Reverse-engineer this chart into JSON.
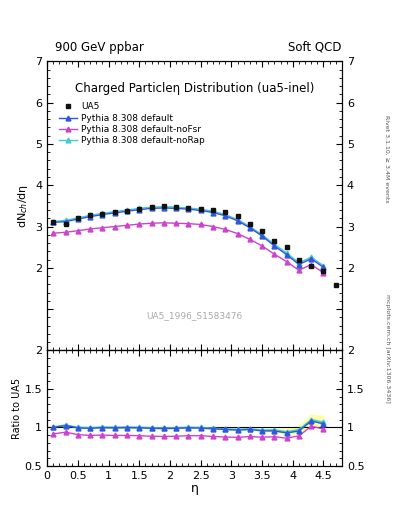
{
  "title": "Charged Particleη Distribution",
  "title_suffix": "(ua5-inel)",
  "header_left": "900 GeV ppbar",
  "header_right": "Soft QCD",
  "ylabel_main": "dN$_{ch}$/dη",
  "ylabel_ratio": "Ratio to UA5",
  "xlabel": "η",
  "right_label_top": "Rivet 3.1.10, ≥ 3.4M events",
  "right_label_bottom": "mcplots.cern.ch [arXiv:1306.3436]",
  "watermark": "UA5_1996_S1583476",
  "ua5_eta": [
    0.1,
    0.3,
    0.5,
    0.7,
    0.9,
    1.1,
    1.3,
    1.5,
    1.7,
    1.9,
    2.1,
    2.3,
    2.5,
    2.7,
    2.9,
    3.1,
    3.3,
    3.5,
    3.7,
    3.9,
    4.1,
    4.3,
    4.5,
    4.7
  ],
  "ua5_vals": [
    3.1,
    3.05,
    3.2,
    3.28,
    3.3,
    3.35,
    3.38,
    3.43,
    3.48,
    3.5,
    3.48,
    3.44,
    3.42,
    3.4,
    3.35,
    3.25,
    3.05,
    2.9,
    2.65,
    2.5,
    2.18,
    2.05,
    1.92,
    1.58
  ],
  "py_default_eta": [
    0.1,
    0.3,
    0.5,
    0.7,
    0.9,
    1.1,
    1.3,
    1.5,
    1.7,
    1.9,
    2.1,
    2.3,
    2.5,
    2.7,
    2.9,
    3.1,
    3.3,
    3.5,
    3.7,
    3.9,
    4.1,
    4.3,
    4.5
  ],
  "py_default_vals": [
    3.1,
    3.12,
    3.18,
    3.24,
    3.29,
    3.33,
    3.37,
    3.41,
    3.44,
    3.45,
    3.44,
    3.42,
    3.39,
    3.34,
    3.26,
    3.14,
    2.97,
    2.77,
    2.53,
    2.32,
    2.08,
    2.22,
    2.01
  ],
  "py_nofsr_eta": [
    0.1,
    0.3,
    0.5,
    0.7,
    0.9,
    1.1,
    1.3,
    1.5,
    1.7,
    1.9,
    2.1,
    2.3,
    2.5,
    2.7,
    2.9,
    3.1,
    3.3,
    3.5,
    3.7,
    3.9,
    4.1,
    4.3,
    4.5
  ],
  "py_nofsr_vals": [
    2.84,
    2.86,
    2.9,
    2.94,
    2.97,
    3.0,
    3.03,
    3.06,
    3.08,
    3.09,
    3.08,
    3.07,
    3.05,
    3.0,
    2.93,
    2.83,
    2.69,
    2.53,
    2.33,
    2.15,
    1.94,
    2.08,
    1.88
  ],
  "py_norap_eta": [
    0.1,
    0.3,
    0.5,
    0.7,
    0.9,
    1.1,
    1.3,
    1.5,
    1.7,
    1.9,
    2.1,
    2.3,
    2.5,
    2.7,
    2.9,
    3.1,
    3.3,
    3.5,
    3.7,
    3.9,
    4.1,
    4.3,
    4.5
  ],
  "py_norap_vals": [
    3.12,
    3.15,
    3.21,
    3.27,
    3.32,
    3.36,
    3.4,
    3.44,
    3.47,
    3.48,
    3.47,
    3.45,
    3.42,
    3.37,
    3.29,
    3.17,
    3.0,
    2.8,
    2.57,
    2.36,
    2.12,
    2.26,
    2.05
  ],
  "color_ua5": "#111111",
  "color_default": "#3355dd",
  "color_nofsr": "#cc44cc",
  "color_norap": "#44cccc",
  "band_yellow": "#ffff88",
  "band_green": "#88ff88",
  "band_alpha": 0.7,
  "ylim_main": [
    0.0,
    7.0
  ],
  "ylim_ratio": [
    0.5,
    2.0
  ],
  "xlim": [
    0.0,
    4.8
  ],
  "yticks_main": [
    1,
    2,
    3,
    4,
    5,
    6,
    7
  ],
  "yticks_ratio": [
    0.5,
    1.0,
    1.5,
    2.0
  ],
  "main_ytick_labels": [
    "",
    "2",
    "3",
    "4",
    "5",
    "6",
    "7"
  ],
  "ratio_ytick_labels": [
    "0.5",
    "1",
    "1.5",
    "2"
  ],
  "xticks": [
    0,
    0.5,
    1.0,
    1.5,
    2.0,
    2.5,
    3.0,
    3.5,
    4.0,
    4.5
  ],
  "xtick_labels": [
    "0",
    "0.5",
    "1",
    "1.5",
    "2",
    "2.5",
    "3",
    "3.5",
    "4",
    "4.5"
  ]
}
